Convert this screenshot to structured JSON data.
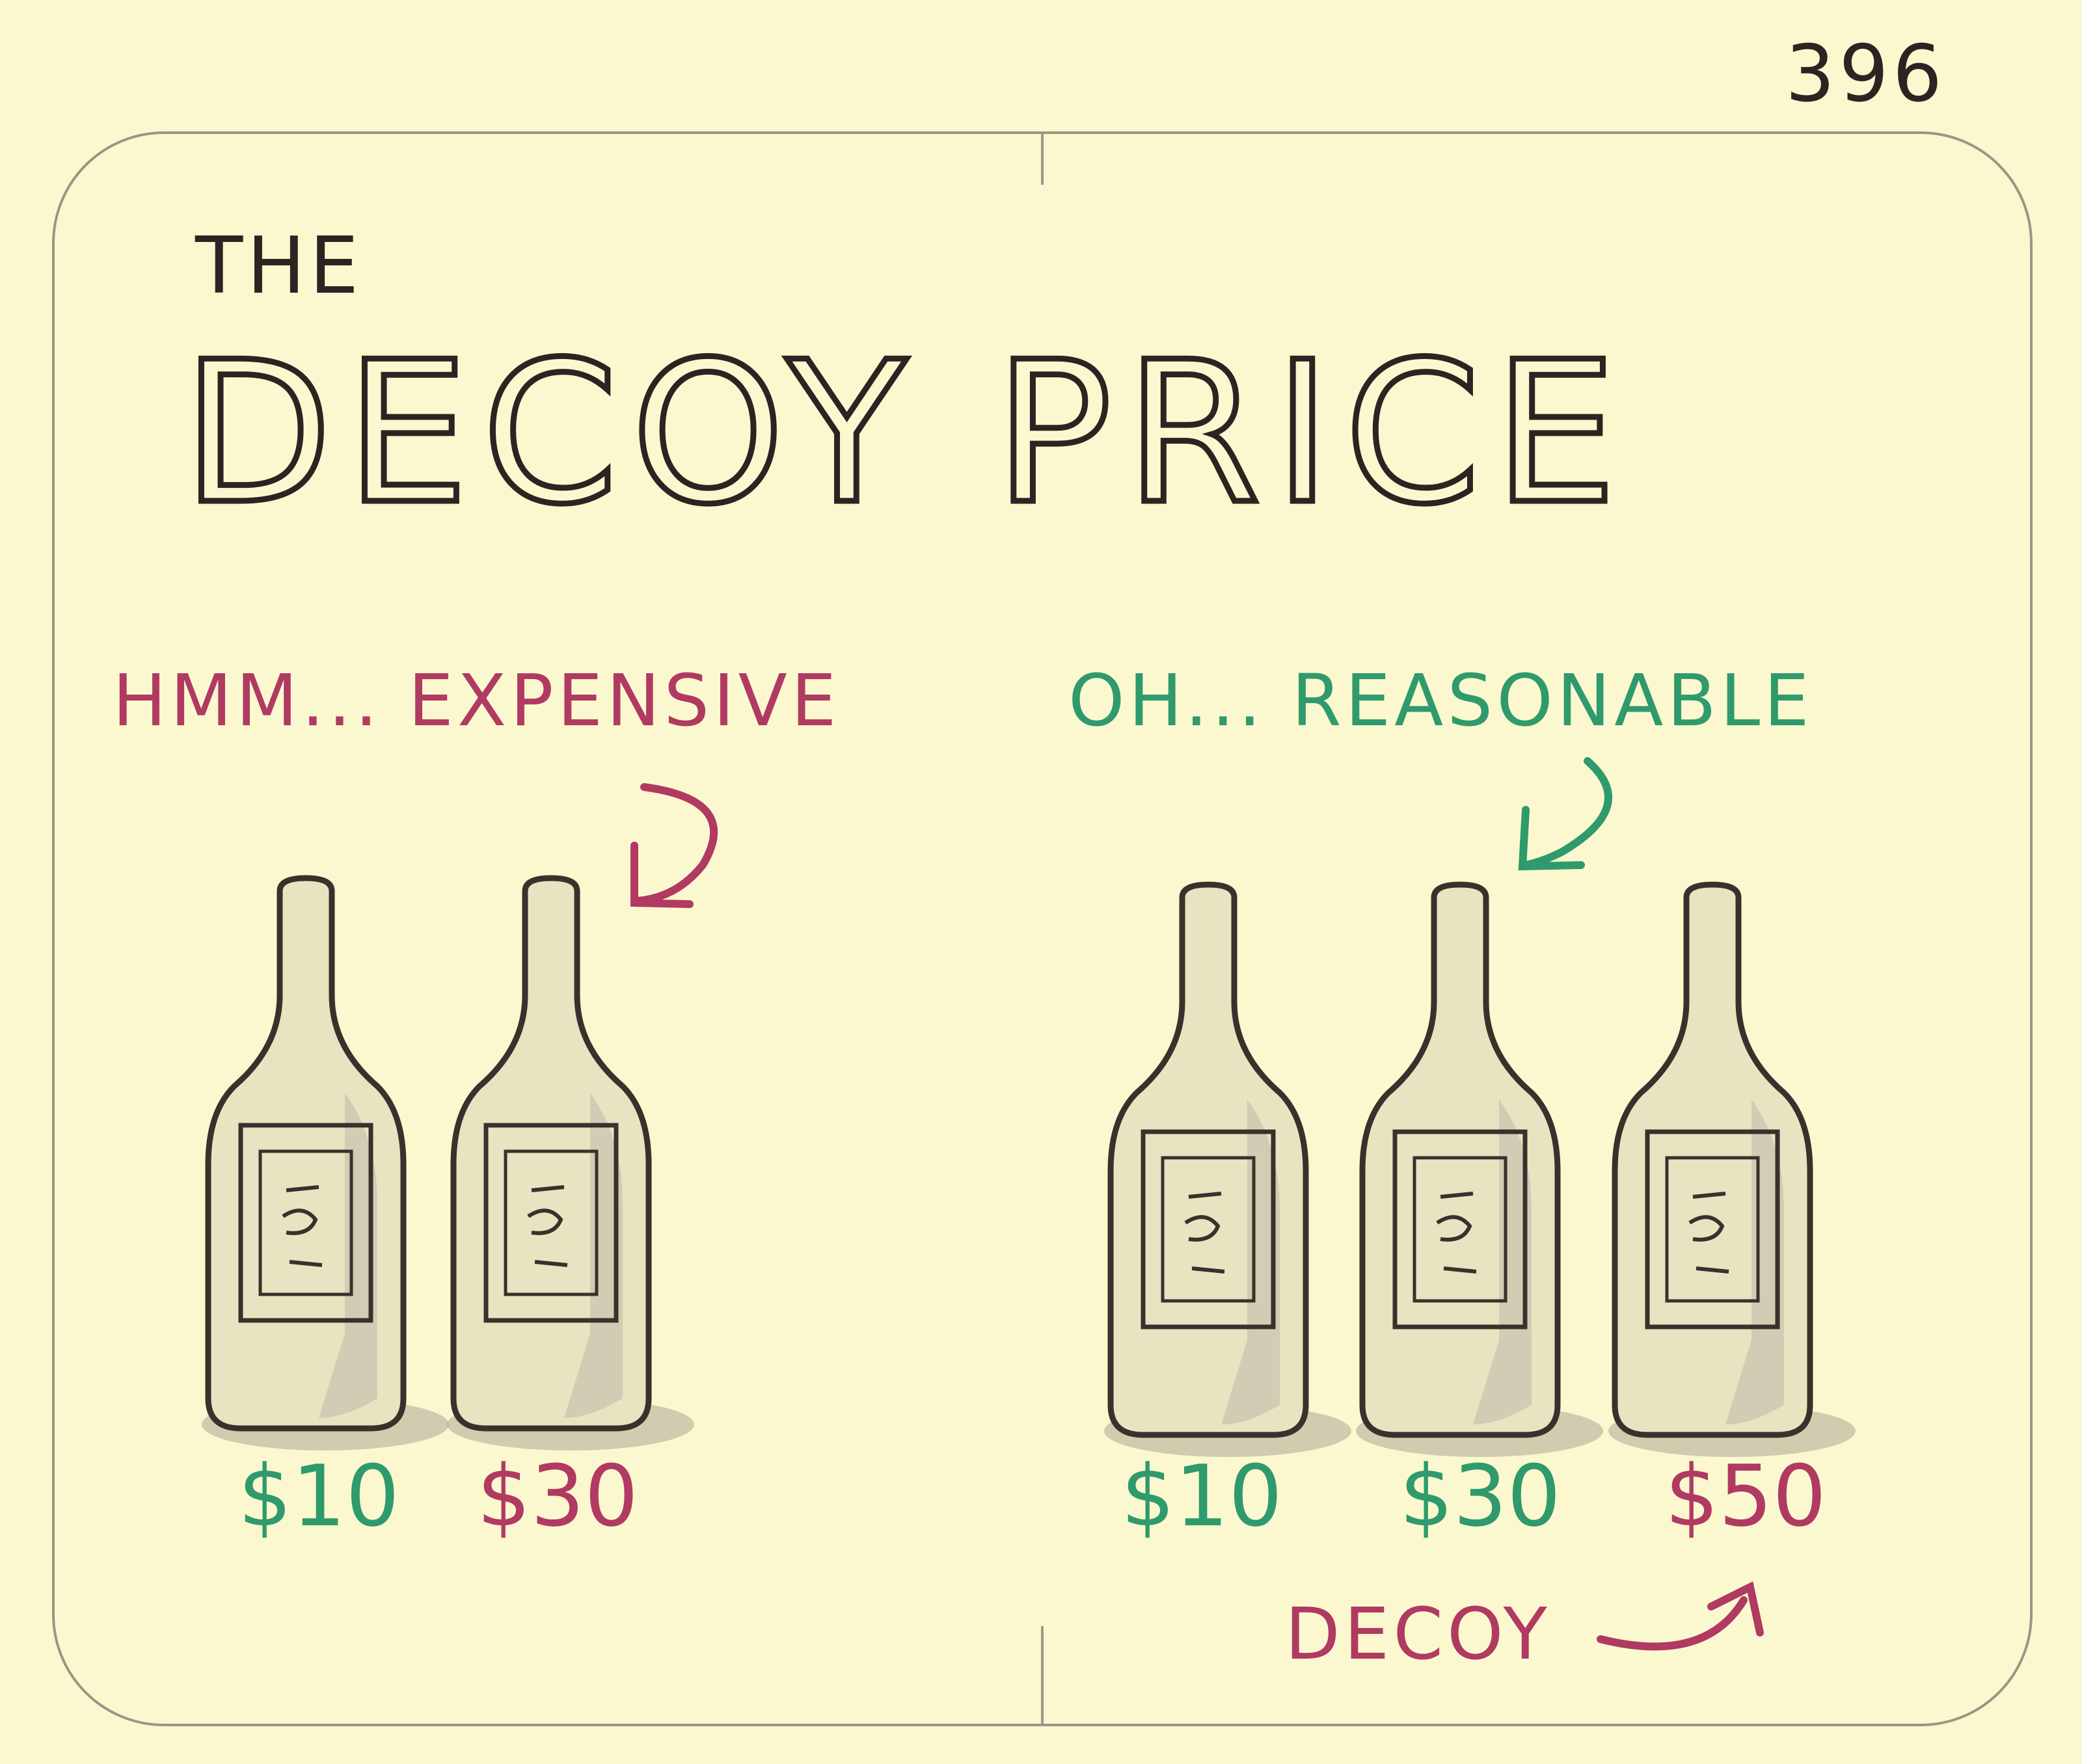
{
  "sketch_number": "396",
  "title": {
    "small": "THE",
    "large": "DECOY PRICE"
  },
  "panels": [
    {
      "caption": "HMM... EXPENSIVE",
      "caption_color": "#b03a62",
      "bottles": [
        {
          "price": "$10",
          "color": "#2f9a6c"
        },
        {
          "price": "$30",
          "color": "#b03a62"
        }
      ]
    },
    {
      "caption": "OH... REASONABLE",
      "caption_color": "#2f9a6c",
      "bottles": [
        {
          "price": "$10",
          "color": "#2f9a6c"
        },
        {
          "price": "$30",
          "color": "#2f9a6c"
        },
        {
          "price": "$50",
          "color": "#b03a62"
        }
      ],
      "note": "DECOY",
      "note_color": "#b03a62"
    }
  ]
}
